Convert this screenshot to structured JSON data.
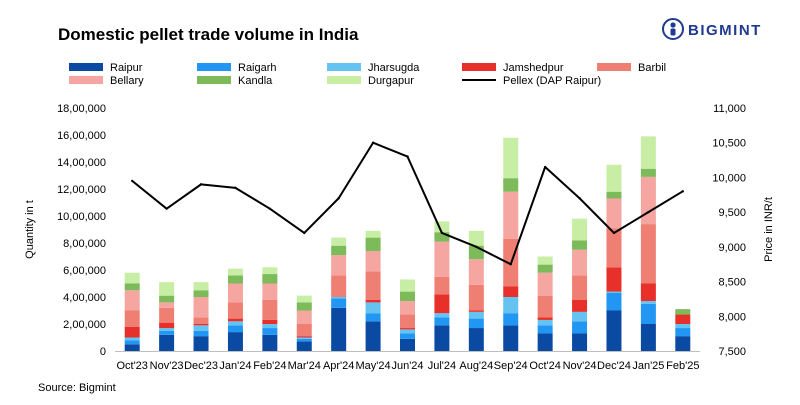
{
  "brand": {
    "name": "BIGMINT",
    "color": "#1f3a8f"
  },
  "source": "Source: Bigmint",
  "chart_data": {
    "type": "bar",
    "stacked": true,
    "title": "Domestic pellet trade volume in India",
    "ylabel": "Quantity in t",
    "y2label": "Price in INR/t",
    "ylim": [
      0,
      18000000
    ],
    "y2lim": [
      7500,
      11000
    ],
    "yticks": [
      "0",
      "2,00,000",
      "4,00,000",
      "6,00,000",
      "8,00,000",
      "10,00,000",
      "12,00,000",
      "14,00,000",
      "16,00,000",
      "18,00,000"
    ],
    "y2ticks": [
      "7,500",
      "8,000",
      "8,500",
      "9,000",
      "9,500",
      "10,000",
      "10,500",
      "11,000"
    ],
    "categories": [
      "Oct'23",
      "Nov'23",
      "Dec'23",
      "Jan'24",
      "Feb'24",
      "Mar'24",
      "Apr'24",
      "May'24",
      "Jun'24",
      "Jul'24",
      "Aug'24",
      "Sep'24",
      "Oct'24",
      "Nov'24",
      "Dec'24",
      "Jan'25",
      "Feb'25"
    ],
    "series": [
      {
        "name": "Raipur",
        "color": "#0b4aa2",
        "values": [
          500000,
          1200000,
          1100000,
          1400000,
          1200000,
          700000,
          3200000,
          2200000,
          900000,
          1900000,
          1700000,
          1900000,
          1300000,
          1300000,
          3000000,
          2000000,
          1100000
        ]
      },
      {
        "name": "Raigarh",
        "color": "#2196f3",
        "values": [
          300000,
          300000,
          400000,
          500000,
          500000,
          200000,
          700000,
          600000,
          400000,
          600000,
          700000,
          900000,
          600000,
          900000,
          1300000,
          1500000,
          600000
        ]
      },
      {
        "name": "Jharsugda",
        "color": "#64c3f0",
        "values": [
          200000,
          200000,
          400000,
          300000,
          300000,
          100000,
          100000,
          800000,
          300000,
          300000,
          500000,
          1200000,
          400000,
          700000,
          100000,
          200000,
          300000
        ]
      },
      {
        "name": "Jamshedpur",
        "color": "#e8302b",
        "values": [
          800000,
          400000,
          100000,
          200000,
          300000,
          100000,
          0,
          200000,
          100000,
          1400000,
          100000,
          800000,
          200000,
          900000,
          1800000,
          1300000,
          700000
        ]
      },
      {
        "name": "Barbil",
        "color": "#f07f73",
        "values": [
          1200000,
          1100000,
          500000,
          1200000,
          1500000,
          900000,
          1600000,
          2100000,
          1000000,
          1300000,
          1900000,
          3500000,
          1600000,
          1800000,
          2900000,
          4400000,
          0
        ]
      },
      {
        "name": "Bellary",
        "color": "#f5a6a0",
        "values": [
          1500000,
          400000,
          1500000,
          1400000,
          1200000,
          1000000,
          1500000,
          1500000,
          1000000,
          2600000,
          1900000,
          3500000,
          1700000,
          1900000,
          2200000,
          3500000,
          0
        ]
      },
      {
        "name": "Kandla",
        "color": "#7cba5a",
        "values": [
          500000,
          500000,
          500000,
          600000,
          700000,
          600000,
          700000,
          1000000,
          700000,
          700000,
          1000000,
          1000000,
          600000,
          700000,
          500000,
          600000,
          400000
        ]
      },
      {
        "name": "Durgapur",
        "color": "#c8eea6",
        "values": [
          800000,
          1000000,
          600000,
          500000,
          500000,
          500000,
          600000,
          500000,
          900000,
          800000,
          1100000,
          3000000,
          600000,
          1600000,
          2000000,
          2400000,
          0
        ]
      }
    ],
    "line": {
      "name": "Pellex (DAP Raipur)",
      "color": "#000000",
      "axis": "right",
      "values": [
        9950,
        9550,
        9900,
        9850,
        9550,
        9200,
        9700,
        10500,
        10300,
        9200,
        9000,
        8750,
        10150,
        9700,
        9200,
        9500,
        9800
      ]
    },
    "legend_placement": "top",
    "grid": false
  }
}
